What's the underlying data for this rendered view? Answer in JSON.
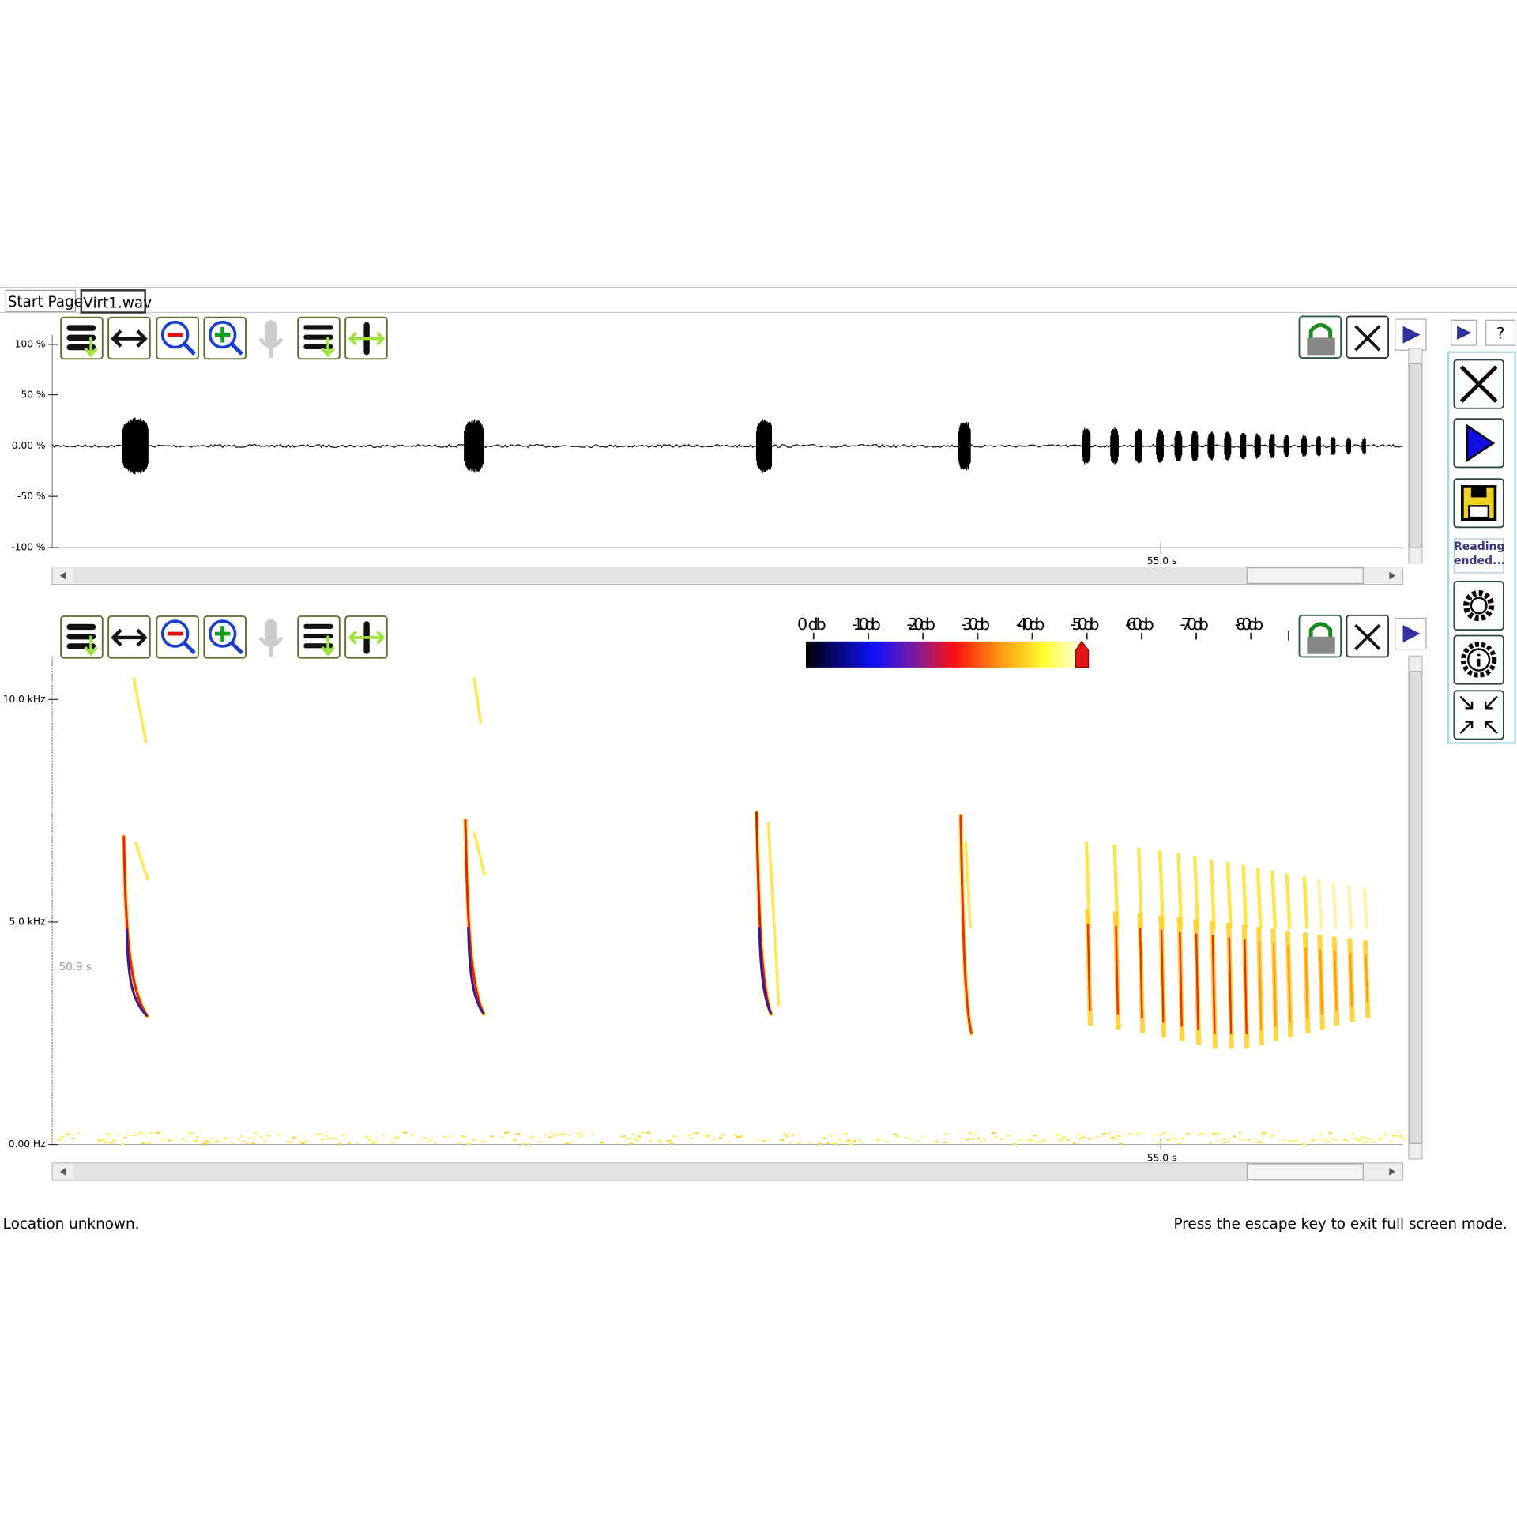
{
  "tabs": [
    "Start Page",
    "Virt1.wav"
  ],
  "waveform": {
    "y_ticks": [
      "100 %",
      "50 %",
      "0.00 %",
      "-50 %",
      "-100 %"
    ],
    "x_tick": "55.0 s"
  },
  "spectrogram": {
    "y_ticks": [
      "10.0 kHz",
      "5.0 kHz",
      "0.00 Hz"
    ],
    "x_tick": "55.0 s",
    "cursor_label": "50.9 s",
    "colorbar_labels": [
      "0 db",
      "-10 db",
      "-20 db",
      "-30 db",
      "-40 db",
      "-50 db",
      "-60 db",
      "-70 db",
      "-80 db"
    ]
  },
  "side_panel": {
    "help": "?",
    "status": "Reading ended..."
  },
  "footer": {
    "location": "Location unknown.",
    "hint": "Press the escape key to exit full screen mode."
  }
}
